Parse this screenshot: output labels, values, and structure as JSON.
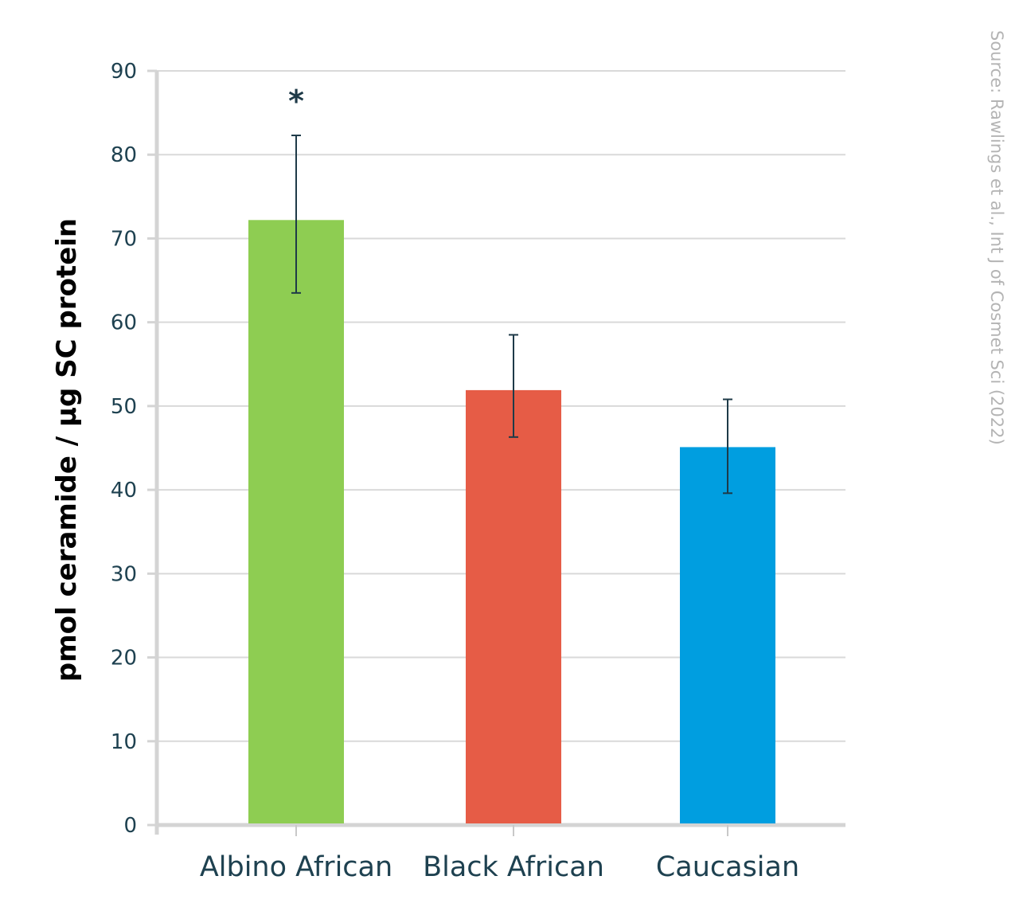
{
  "chart_data": {
    "type": "bar",
    "categories": [
      "Albino African",
      "Black African",
      "Caucasian"
    ],
    "values": [
      72.2,
      51.9,
      45.1
    ],
    "error_low": [
      63.5,
      46.3,
      39.6
    ],
    "error_high": [
      82.3,
      58.5,
      50.8
    ],
    "colors": [
      "#8ecd52",
      "#e65c46",
      "#009ee0"
    ],
    "ylabel": "pmol ceramide / µg SC protein",
    "ylim": [
      0,
      90
    ],
    "yticks": [
      0,
      10,
      20,
      30,
      40,
      50,
      60,
      70,
      80,
      90
    ],
    "grid": true,
    "annotations": [
      {
        "category": "Albino African",
        "text": "*"
      }
    ],
    "source": "Source: Rawlings et al., Int J of Cosmet Sci (2022)"
  }
}
